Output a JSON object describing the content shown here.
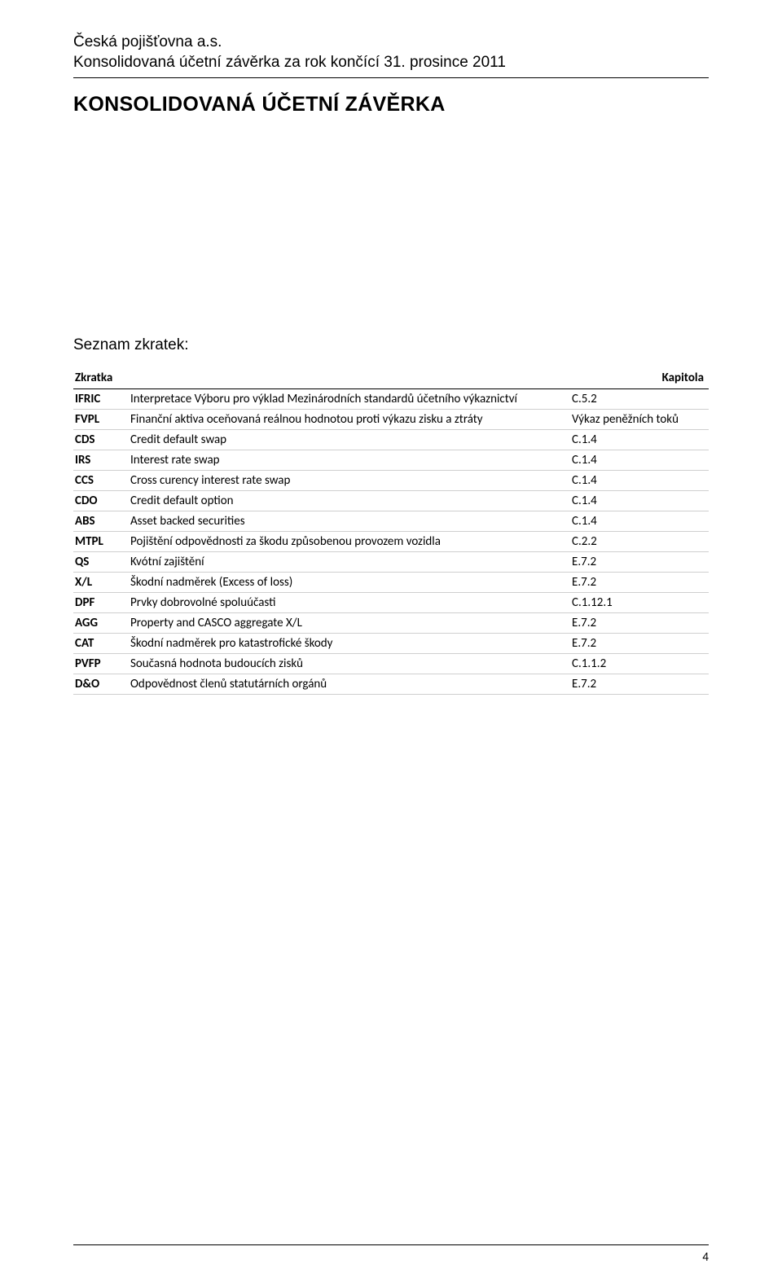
{
  "header": {
    "line1": "Česká pojišťovna a.s.",
    "line2": "Konsolidovaná účetní závěrka za rok končící 31. prosince 2011"
  },
  "title": "KONSOLIDOVANÁ ÚČETNÍ ZÁVĚRKA",
  "list_title": "Seznam zkratek:",
  "table": {
    "header_col1": "Zkratka",
    "header_col3": "Kapitola",
    "rows": [
      {
        "code": "IFRIC",
        "desc": "Interpretace Výboru pro výklad Mezinárodních standardů účetního výkaznictví",
        "chap": "C.5.2"
      },
      {
        "code": "FVPL",
        "desc": "Finanční aktiva oceňovaná reálnou hodnotou proti výkazu zisku a ztráty",
        "chap": "Výkaz peněžních toků"
      },
      {
        "code": "CDS",
        "desc": "Credit default swap",
        "chap": "C.1.4"
      },
      {
        "code": "IRS",
        "desc": "Interest rate swap",
        "chap": "C.1.4"
      },
      {
        "code": "CCS",
        "desc": "Cross curency interest rate swap",
        "chap": "C.1.4"
      },
      {
        "code": "CDO",
        "desc": "Credit default option",
        "chap": "C.1.4"
      },
      {
        "code": "ABS",
        "desc": "Asset backed securities",
        "chap": "C.1.4"
      },
      {
        "code": "MTPL",
        "desc": "Pojištění odpovědnosti za škodu způsobenou provozem vozidla",
        "chap": "C.2.2"
      },
      {
        "code": "QS",
        "desc": "Kvótní zajištění",
        "chap": "E.7.2"
      },
      {
        "code": "X/L",
        "desc": "Škodní nadměrek (Excess of loss)",
        "chap": "E.7.2"
      },
      {
        "code": "DPF",
        "desc": "Prvky dobrovolné spoluúčasti",
        "chap": "C.1.12.1"
      },
      {
        "code": "AGG",
        "desc": "Property and CASCO aggregate X/L",
        "chap": "E.7.2"
      },
      {
        "code": "CAT",
        "desc": "Škodní nadměrek pro katastrofické škody",
        "chap": "E.7.2"
      },
      {
        "code": "PVFP",
        "desc": "Současná hodnota budoucích zisků",
        "chap": "C.1.1.2"
      },
      {
        "code": "D&O",
        "desc": "Odpovědnost členů statutárních orgánů",
        "chap": "E.7.2"
      }
    ]
  },
  "page_number": "4",
  "colors": {
    "text": "#000000",
    "background": "#ffffff",
    "row_border": "#cfcfcf",
    "rule": "#000000"
  }
}
